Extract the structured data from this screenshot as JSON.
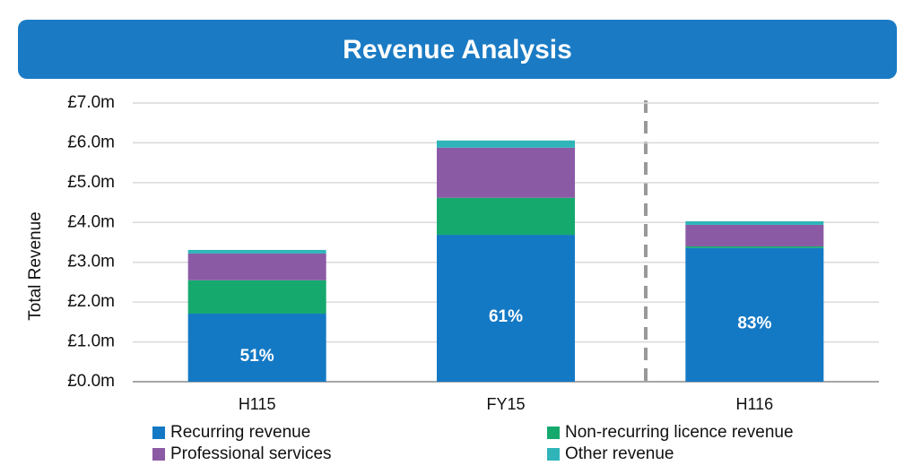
{
  "chart_data": {
    "type": "stacked_bar",
    "title": "Revenue Analysis",
    "ylabel": "Total Revenue",
    "categories": [
      "H115",
      "FY15",
      "H116"
    ],
    "series": [
      {
        "name": "Recurring revenue",
        "color": "#1479c4",
        "values": [
          1.71,
          3.69,
          3.36
        ]
      },
      {
        "name": "Non-recurring licence revenue",
        "color": "#16a96e",
        "values": [
          0.84,
          0.93,
          0.04
        ]
      },
      {
        "name": "Professional services",
        "color": "#8b5aa5",
        "values": [
          0.67,
          1.26,
          0.54
        ]
      },
      {
        "name": "Other revenue",
        "color": "#2fb5b9",
        "values": [
          0.09,
          0.18,
          0.09
        ]
      }
    ],
    "annotations": [
      "51%",
      "61%",
      "83%"
    ],
    "ylim": [
      0,
      7
    ],
    "yticks": [
      {
        "value": 0,
        "label": "£0.0m"
      },
      {
        "value": 1,
        "label": "£1.0m"
      },
      {
        "value": 2,
        "label": "£2.0m"
      },
      {
        "value": 3,
        "label": "£3.0m"
      },
      {
        "value": 4,
        "label": "£4.0m"
      },
      {
        "value": 5,
        "label": "£5.0m"
      },
      {
        "value": 6,
        "label": "£6.0m"
      },
      {
        "value": 7,
        "label": "£7.0m"
      }
    ],
    "grid": true
  }
}
